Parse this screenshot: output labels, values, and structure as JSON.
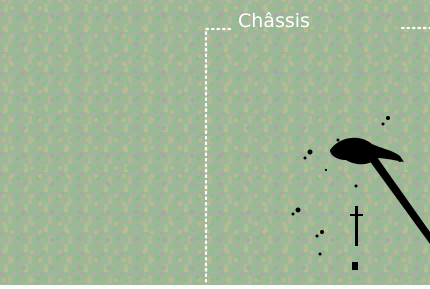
{
  "label": "Châssis"
}
